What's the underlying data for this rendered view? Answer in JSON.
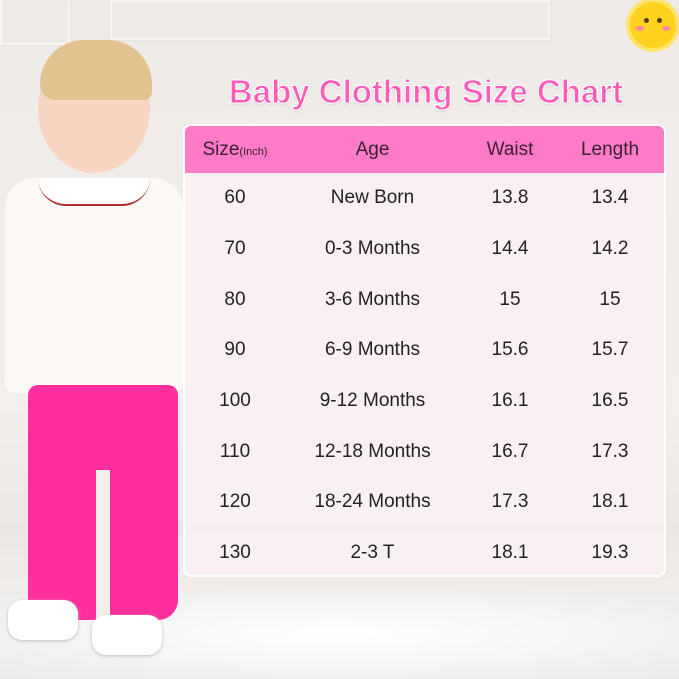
{
  "title": "Baby Clothing Size Chart",
  "colors": {
    "accent": "#ff5cb8",
    "header_bg": "#ff7bc7",
    "leggings": "#ff2e9e"
  },
  "table": {
    "headers": {
      "size": "Size",
      "size_unit": "(Inch)",
      "age": "Age",
      "waist": "Waist",
      "length": "Length"
    },
    "rows": [
      {
        "size": "60",
        "age": "New Born",
        "waist": "13.8",
        "length": "13.4"
      },
      {
        "size": "70",
        "age": "0-3 Months",
        "waist": "14.4",
        "length": "14.2"
      },
      {
        "size": "80",
        "age": "3-6 Months",
        "waist": "15",
        "length": "15"
      },
      {
        "size": "90",
        "age": "6-9 Months",
        "waist": "15.6",
        "length": "15.7"
      },
      {
        "size": "100",
        "age": "9-12 Months",
        "waist": "16.1",
        "length": "16.5"
      },
      {
        "size": "110",
        "age": "12-18 Months",
        "waist": "16.7",
        "length": "17.3"
      },
      {
        "size": "120",
        "age": "18-24 Months",
        "waist": "17.3",
        "length": "18.1"
      },
      {
        "size": "130",
        "age": "2-3 T",
        "waist": "18.1",
        "length": "19.3"
      }
    ]
  }
}
